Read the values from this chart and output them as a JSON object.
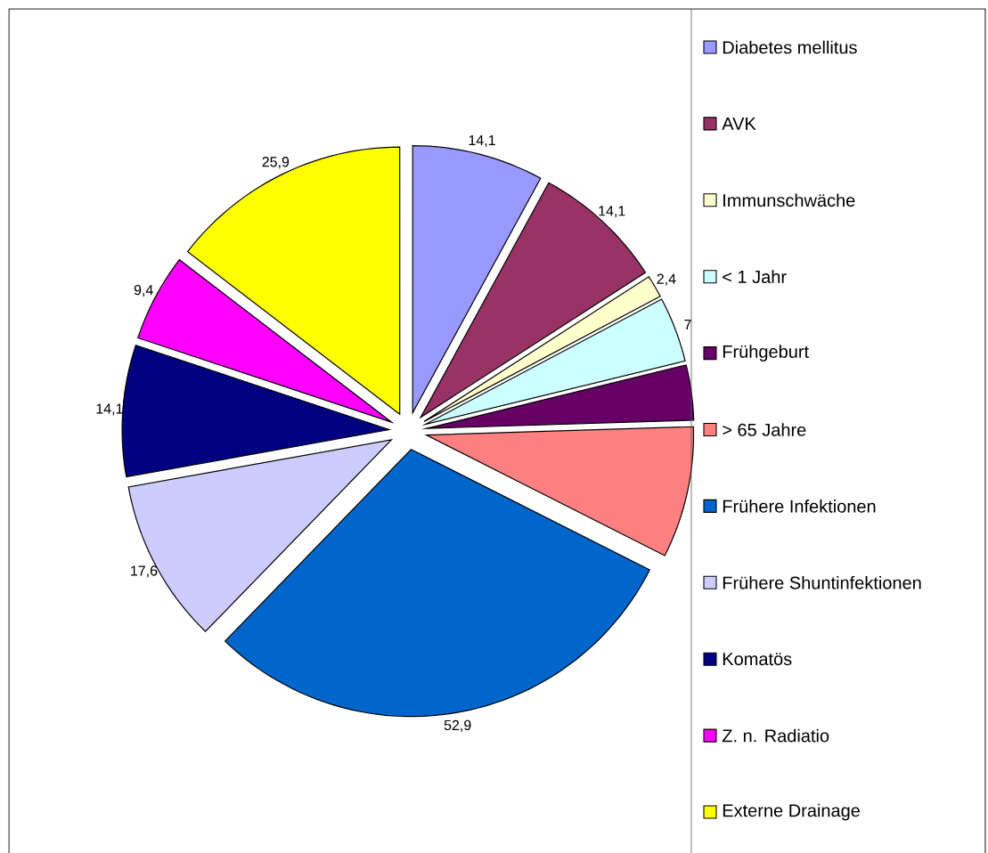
{
  "chart_data": {
    "type": "pie",
    "categories": [
      "Diabetes mellitus",
      "AVK",
      "Immunschwäche",
      "< 1 Jahr",
      "Frühgeburt",
      "> 65 Jahre",
      "Frühere Infektionen",
      "Frühere Shuntinfektionen",
      "Komatös",
      "Z. n. Radiatio",
      "Externe Drainage"
    ],
    "values": [
      14.1,
      14.1,
      2.4,
      7,
      5.9,
      14.1,
      52.9,
      17.6,
      14.1,
      9.4,
      25.9
    ],
    "value_labels": [
      "14,1",
      "14,1",
      "2,4",
      "7",
      null,
      null,
      "52,9",
      "17,6",
      "14,1",
      "9,4",
      "25,9"
    ],
    "colors": [
      "#9999ff",
      "#993366",
      "#ffffcc",
      "#ccffff",
      "#660066",
      "#ff8080",
      "#0066cc",
      "#ccccff",
      "#000080",
      "#ff00ff",
      "#ffff00"
    ],
    "legend": "right"
  }
}
